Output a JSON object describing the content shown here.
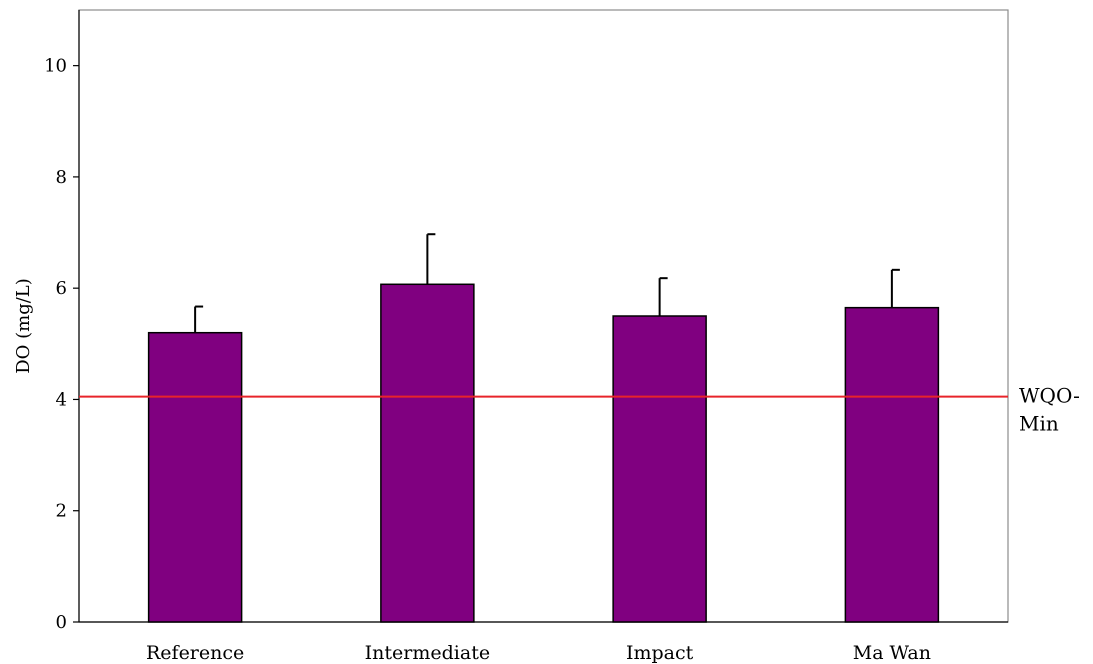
{
  "chart_data": {
    "type": "bar",
    "title": "",
    "xlabel": "",
    "ylabel": "DO (mg/L)",
    "ylim": [
      0,
      11
    ],
    "yticks": [
      0,
      2,
      4,
      6,
      8,
      10
    ],
    "grid": false,
    "legend": "none",
    "categories": [
      "Reference",
      "Intermediate",
      "Impact",
      "Ma Wan"
    ],
    "series": [
      {
        "values": [
          5.2,
          6.07,
          5.5,
          5.65
        ],
        "error_plus": [
          0.47,
          0.9,
          0.68,
          0.68
        ],
        "color": "#800080"
      }
    ],
    "reference_line": {
      "label": "WQO-Min",
      "label_lines": [
        "WQO-",
        "Min"
      ],
      "value": 4.05,
      "color": "#e8242a"
    }
  }
}
